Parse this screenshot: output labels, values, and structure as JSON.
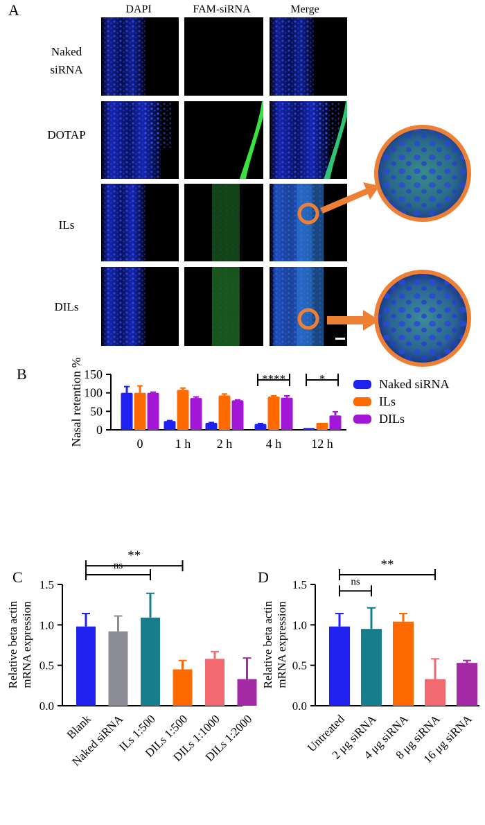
{
  "panel_a": {
    "letter": "A",
    "columns": [
      "DAPI",
      "FAM-siRNA",
      "Merge"
    ],
    "rows": [
      {
        "label_lines": [
          "Naked",
          "siRNA"
        ]
      },
      {
        "label_lines": [
          "DOTAP"
        ]
      },
      {
        "label_lines": [
          "ILs"
        ]
      },
      {
        "label_lines": [
          "DILs"
        ]
      }
    ],
    "colors": {
      "dapi": "#1a2ccc",
      "fam": "#33e63a",
      "merge": "#2f7fd0",
      "highlight": "#ee8036"
    }
  },
  "colors": {
    "naked": "#1f22ee",
    "ils": "#ff6a00",
    "dils": "#a216d6",
    "grey": "#8c8c97",
    "teal": "#157d8c",
    "salmon": "#f26a6f",
    "purple2": "#a52aa6"
  },
  "chart_data": [
    {
      "panel": "B",
      "type": "bar",
      "ylabel": "Nasal retention %",
      "ylim": [
        0,
        150
      ],
      "yticks": [
        "0",
        "50",
        "100",
        "150"
      ],
      "categories": [
        "0",
        "1 h",
        "2 h",
        "4 h",
        "12 h"
      ],
      "series": [
        {
          "name": "Naked siRNA",
          "values": [
            100,
            24,
            19,
            16,
            5
          ],
          "errors": [
            17,
            1,
            1,
            1,
            0
          ]
        },
        {
          "name": "ILs",
          "values": [
            100,
            108,
            93,
            90,
            19
          ],
          "errors": [
            19,
            5,
            4,
            2,
            0
          ]
        },
        {
          "name": "DILs",
          "values": [
            100,
            86,
            80,
            87,
            39
          ],
          "errors": [
            2,
            3,
            1,
            5,
            10
          ]
        }
      ],
      "annotations": [
        {
          "text": "****",
          "from_category": "4 h",
          "from_series": 0,
          "to_series": 2
        },
        {
          "text": "*",
          "from_category": "12 h",
          "from_series": 0,
          "to_series": 2
        }
      ],
      "legend": "right"
    },
    {
      "panel": "C",
      "type": "bar",
      "ylabel_lines": [
        "Relative beta actin",
        "mRNA expression"
      ],
      "ylim": [
        0,
        1.5
      ],
      "yticks": [
        "0.0",
        "0.5",
        "1.0",
        "1.5"
      ],
      "categories": [
        "Blank",
        "Naked siRNA",
        "ILs 1:500",
        "DILs 1:500",
        "DILs 1:1000",
        "DILs 1:2000"
      ],
      "values": [
        0.98,
        0.92,
        1.09,
        0.45,
        0.58,
        0.33
      ],
      "errors": [
        0.16,
        0.19,
        0.3,
        0.11,
        0.09,
        0.26
      ],
      "bar_colors": [
        "#1f22ee",
        "#8c8c97",
        "#157d8c",
        "#ff6a00",
        "#f26a6f",
        "#a52aa6"
      ],
      "brackets": [
        {
          "text": "**",
          "from": 0,
          "to": 3
        },
        {
          "text": "ns",
          "from": 0,
          "to": 2
        }
      ]
    },
    {
      "panel": "D",
      "type": "bar",
      "ylabel_lines": [
        "Relative beta actin",
        "mRNA expression"
      ],
      "ylim": [
        0,
        1.5
      ],
      "yticks": [
        "0.0",
        "0.5",
        "1.0",
        "1.5"
      ],
      "categories": [
        "Untreated",
        "2 μg siRNA",
        "4 μg siRNA",
        "8 μg siRNA",
        "16 μg siRNA"
      ],
      "values": [
        0.98,
        0.95,
        1.04,
        0.33,
        0.53
      ],
      "errors": [
        0.16,
        0.26,
        0.1,
        0.25,
        0.03
      ],
      "bar_colors": [
        "#1f22ee",
        "#157d8c",
        "#ff6a00",
        "#f26a6f",
        "#a52aa6"
      ],
      "brackets": [
        {
          "text": "**",
          "from": 0,
          "to": 3
        },
        {
          "text": "ns",
          "from": 0,
          "to": 1
        }
      ]
    }
  ]
}
